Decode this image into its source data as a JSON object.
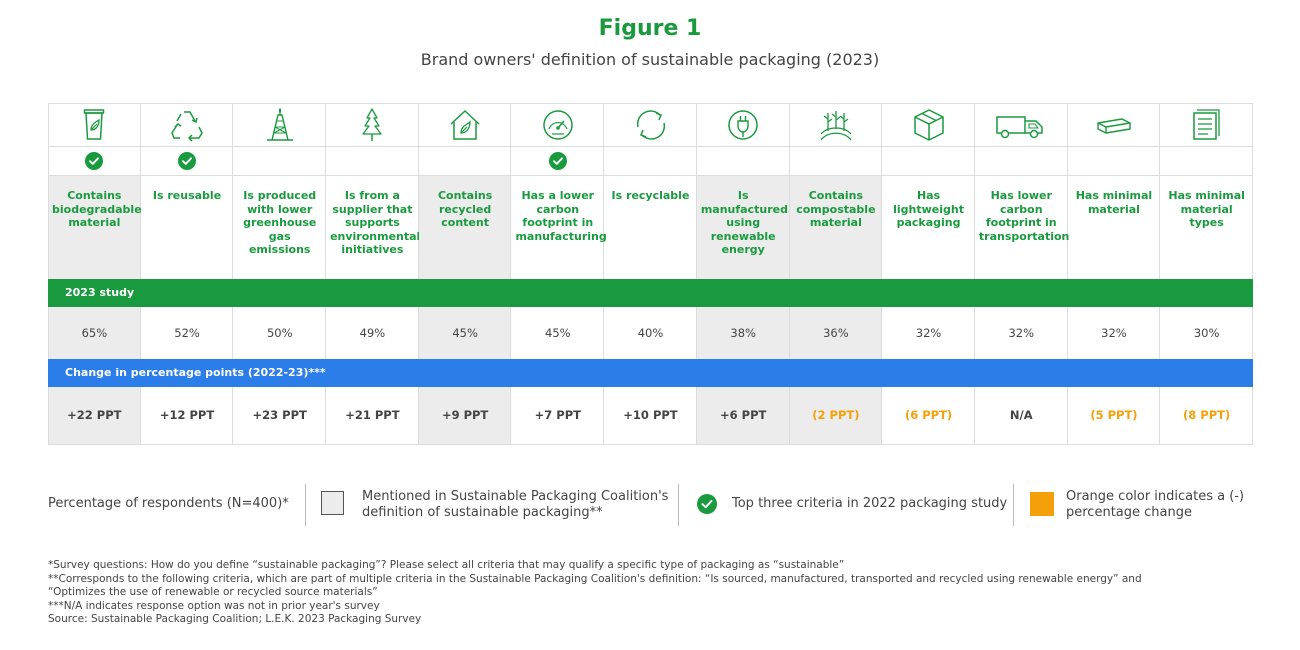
{
  "title": "Figure 1",
  "subtitle": "Brand owners' definition of sustainable packaging (2023)",
  "colors": {
    "green": "#1a9a3e",
    "blue": "#2b7de9",
    "orange": "#f5a00a",
    "shade": "#ececec"
  },
  "chart_data": {
    "type": "table",
    "criteria": [
      {
        "label": "Contains biodegradable material",
        "icon": "cup-leaf-icon",
        "top3_2022": true,
        "mentioned_spc": true,
        "pct_2023": "65%",
        "change": "+22 PPT",
        "negative": false
      },
      {
        "label": "Is reusable",
        "icon": "recycle-arrows-icon",
        "top3_2022": true,
        "mentioned_spc": false,
        "pct_2023": "52%",
        "change": "+12 PPT",
        "negative": false
      },
      {
        "label": "Is produced with lower greenhouse gas emissions",
        "icon": "oil-rig-icon",
        "top3_2022": false,
        "mentioned_spc": false,
        "pct_2023": "50%",
        "change": "+23 PPT",
        "negative": false
      },
      {
        "label": "Is from a supplier that supports environmental initiatives",
        "icon": "tree-icon",
        "top3_2022": false,
        "mentioned_spc": false,
        "pct_2023": "49%",
        "change": "+21 PPT",
        "negative": false
      },
      {
        "label": "Contains recycled content",
        "icon": "house-leaf-icon",
        "top3_2022": false,
        "mentioned_spc": true,
        "pct_2023": "45%",
        "change": "+9 PPT",
        "negative": false
      },
      {
        "label": "Has a lower carbon footprint in manufacturing",
        "icon": "gauge-icon",
        "top3_2022": true,
        "mentioned_spc": false,
        "pct_2023": "45%",
        "change": "+7 PPT",
        "negative": false
      },
      {
        "label": "Is recyclable",
        "icon": "circular-arrows-icon",
        "top3_2022": false,
        "mentioned_spc": false,
        "pct_2023": "40%",
        "change": "+10 PPT",
        "negative": false
      },
      {
        "label": "Is manufactured using renewable energy",
        "icon": "plug-icon",
        "top3_2022": false,
        "mentioned_spc": true,
        "pct_2023": "38%",
        "change": "+6 PPT",
        "negative": false
      },
      {
        "label": "Contains compostable material",
        "icon": "field-plants-icon",
        "top3_2022": false,
        "mentioned_spc": true,
        "pct_2023": "36%",
        "change": "(2 PPT)",
        "negative": true
      },
      {
        "label": "Has lightweight packaging",
        "icon": "box-icon",
        "top3_2022": false,
        "mentioned_spc": false,
        "pct_2023": "32%",
        "change": "(6 PPT)",
        "negative": true
      },
      {
        "label": "Has lower carbon footprint in transportation",
        "icon": "truck-icon",
        "top3_2022": false,
        "mentioned_spc": false,
        "pct_2023": "32%",
        "change": "N/A",
        "negative": false
      },
      {
        "label": "Has minimal material",
        "icon": "flat-pack-icon",
        "top3_2022": false,
        "mentioned_spc": false,
        "pct_2023": "32%",
        "change": "(5 PPT)",
        "negative": true
      },
      {
        "label": "Has minimal material types",
        "icon": "documents-icon",
        "top3_2022": false,
        "mentioned_spc": false,
        "pct_2023": "30%",
        "change": "(8 PPT)",
        "negative": true
      }
    ],
    "values_2023": [
      65,
      52,
      50,
      49,
      45,
      45,
      40,
      38,
      36,
      32,
      32,
      32,
      30
    ],
    "change_ppt": [
      22,
      12,
      23,
      21,
      9,
      7,
      10,
      6,
      -2,
      -6,
      null,
      -5,
      -8
    ]
  },
  "bands": {
    "study": "2023 study",
    "change": "Change in percentage points (2022-23)***"
  },
  "legend": {
    "respondents": "Percentage of respondents (N=400)*",
    "mentioned_line1": "Mentioned in Sustainable Packaging Coalition's",
    "mentioned_line2": "definition of sustainable packaging**",
    "top3": "Top three criteria in 2022 packaging study",
    "orange_line1": "Orange color indicates a (-)",
    "orange_line2": "percentage change"
  },
  "notes": [
    "*Survey questions: How do you define “sustainable packaging”? Please select all criteria that may qualify a specific type of packaging as “sustainable”",
    "**Corresponds to the following criteria, which are part of multiple criteria in the Sustainable Packaging Coalition's definition: “Is sourced, manufactured, transported and recycled using renewable energy” and",
    "“Optimizes the use of renewable or recycled source materials”",
    "***N/A indicates response option was not in prior year's survey",
    "Source: Sustainable Packaging Coalition; L.E.K. 2023 Packaging Survey"
  ]
}
